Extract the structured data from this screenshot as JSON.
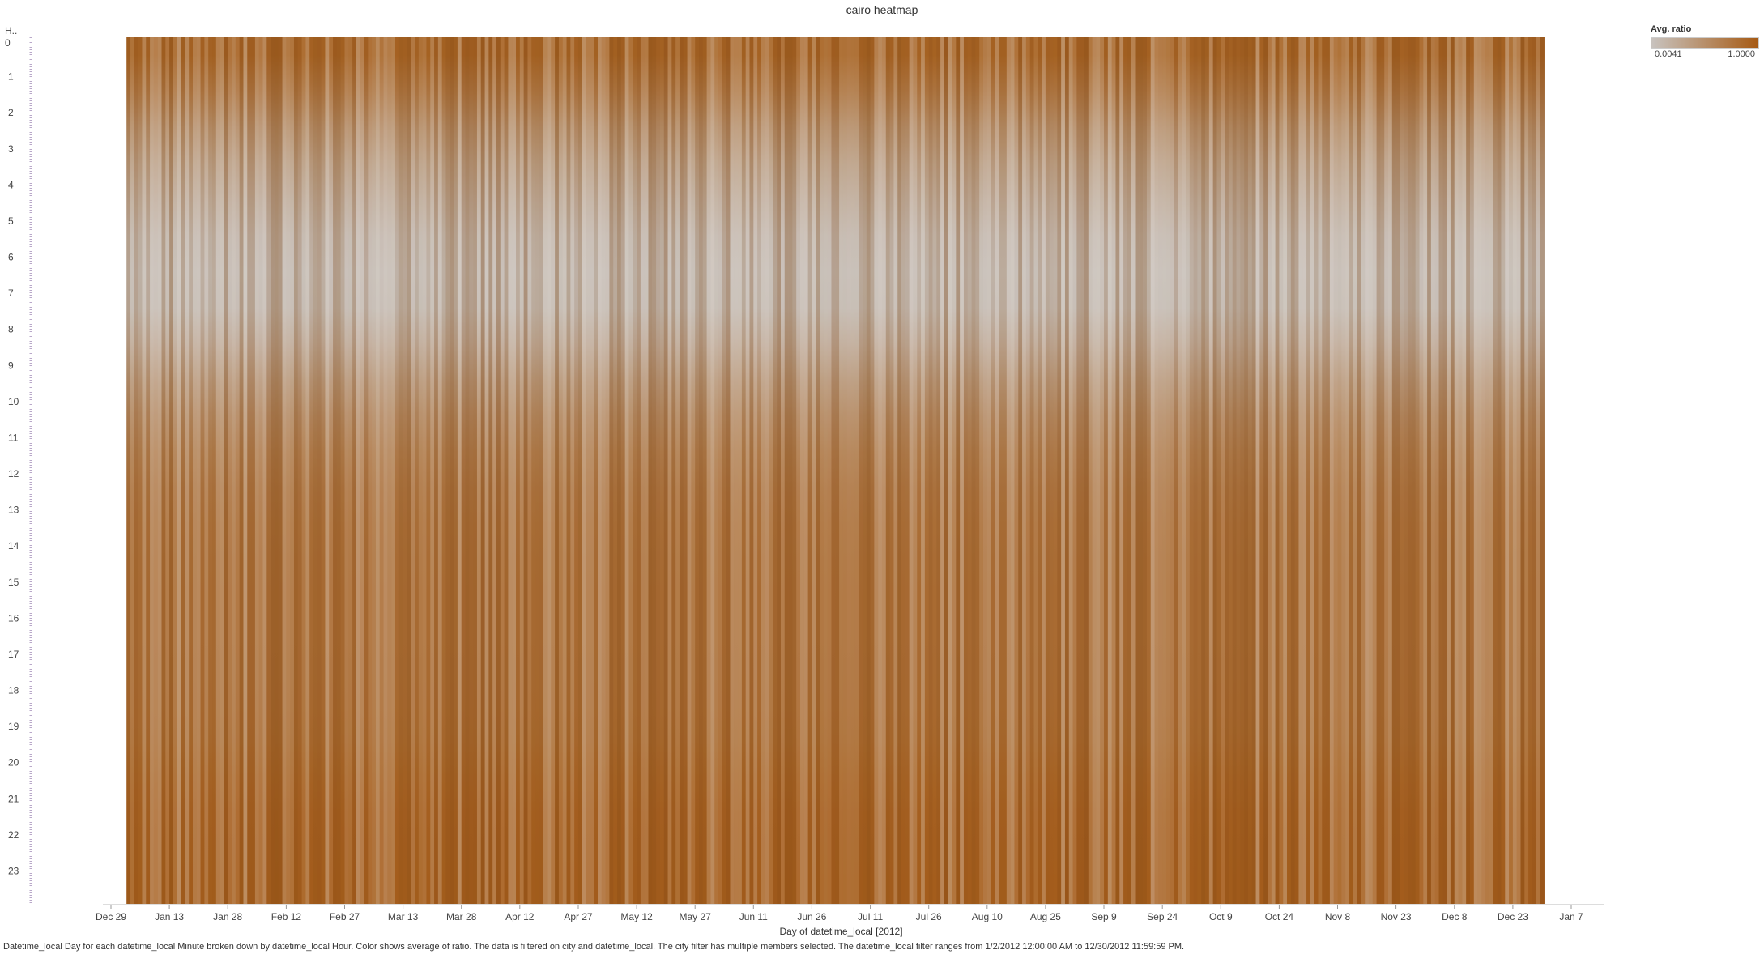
{
  "chart_data": {
    "type": "heatmap",
    "title": "cairo heatmap",
    "xlabel": "Day of datetime_local [2012]",
    "ylabel": "H..",
    "x_tick_labels": [
      "Dec 29",
      "Jan 13",
      "Jan 28",
      "Feb 12",
      "Feb 27",
      "Mar 13",
      "Mar 28",
      "Apr 12",
      "Apr 27",
      "May 12",
      "May 27",
      "Jun 11",
      "Jun 26",
      "Jul 11",
      "Jul 26",
      "Aug 10",
      "Aug 25",
      "Sep 9",
      "Sep 24",
      "Oct 9",
      "Oct 24",
      "Nov 8",
      "Nov 23",
      "Dec 8",
      "Dec 23",
      "Jan 7"
    ],
    "y_tick_labels": [
      "0",
      "1",
      "2",
      "3",
      "4",
      "5",
      "6",
      "7",
      "8",
      "9",
      "10",
      "11",
      "12",
      "13",
      "14",
      "15",
      "16",
      "17",
      "18",
      "19",
      "20",
      "21",
      "22",
      "23"
    ],
    "xlim": [
      "2011-12-29",
      "2013-01-07"
    ],
    "data_range": [
      "2012-01-02",
      "2012-12-30"
    ],
    "rows_per_hour": 60,
    "color_legend": {
      "title": "Avg. ratio",
      "min_label": "0.0041",
      "max_label": "1.0000",
      "min": 0.0041,
      "max": 1.0,
      "min_color": "#c8c3bf",
      "max_color": "#a65a14"
    },
    "hourly_profile": [
      {
        "hour": 0,
        "ratio": 0.9
      },
      {
        "hour": 1,
        "ratio": 0.72
      },
      {
        "hour": 2,
        "ratio": 0.5
      },
      {
        "hour": 3,
        "ratio": 0.33
      },
      {
        "hour": 4,
        "ratio": 0.2
      },
      {
        "hour": 5,
        "ratio": 0.1
      },
      {
        "hour": 6,
        "ratio": 0.06
      },
      {
        "hour": 7,
        "ratio": 0.08
      },
      {
        "hour": 8,
        "ratio": 0.22
      },
      {
        "hour": 9,
        "ratio": 0.4
      },
      {
        "hour": 10,
        "ratio": 0.55
      },
      {
        "hour": 11,
        "ratio": 0.66
      },
      {
        "hour": 12,
        "ratio": 0.73
      },
      {
        "hour": 13,
        "ratio": 0.77
      },
      {
        "hour": 14,
        "ratio": 0.79
      },
      {
        "hour": 15,
        "ratio": 0.8
      },
      {
        "hour": 16,
        "ratio": 0.8
      },
      {
        "hour": 17,
        "ratio": 0.81
      },
      {
        "hour": 18,
        "ratio": 0.82
      },
      {
        "hour": 19,
        "ratio": 0.84
      },
      {
        "hour": 20,
        "ratio": 0.89
      },
      {
        "hour": 21,
        "ratio": 0.92
      },
      {
        "hour": 22,
        "ratio": 0.93
      },
      {
        "hour": 23,
        "ratio": 0.94
      }
    ]
  },
  "caption": "Datetime_local Day for each datetime_local Minute broken down by datetime_local Hour.  Color shows average of ratio. The data is filtered on city and datetime_local. The city filter has multiple members selected. The datetime_local filter ranges from 1/2/2012 12:00:00 AM to 12/30/2012 11:59:59 PM."
}
